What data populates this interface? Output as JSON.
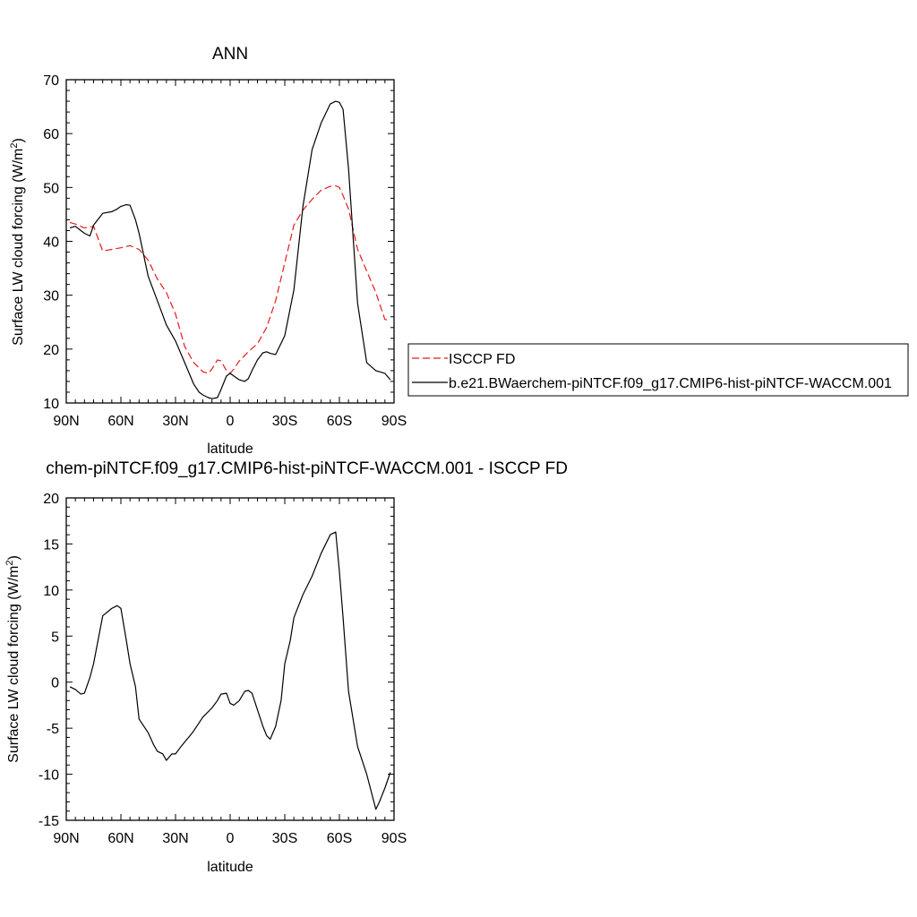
{
  "chart_data": [
    {
      "type": "line",
      "title": "ANN",
      "xlabel": "latitude",
      "ylabel": "Surface LW cloud forcing (W/m",
      "ylabel_superscript": "2",
      "ylabel_suffix": ")",
      "xlim": [
        90,
        -90
      ],
      "ylim": [
        10,
        70
      ],
      "x_ticks": [
        {
          "value": 90,
          "label": "90N"
        },
        {
          "value": 60,
          "label": "60N"
        },
        {
          "value": 30,
          "label": "30N"
        },
        {
          "value": 0,
          "label": "0"
        },
        {
          "value": -30,
          "label": "30S"
        },
        {
          "value": -60,
          "label": "60S"
        },
        {
          "value": -90,
          "label": "90S"
        }
      ],
      "y_ticks": [
        10,
        20,
        30,
        40,
        50,
        60,
        70
      ],
      "grid": false,
      "legend": "right",
      "series": [
        {
          "name": "ISCCP FD",
          "color": "#e41a1c",
          "dash": "dashed",
          "x": [
            88,
            85,
            80,
            75,
            70,
            65,
            60,
            55,
            50,
            45,
            40,
            35,
            30,
            25,
            20,
            15,
            12,
            10,
            7,
            5,
            2,
            0,
            -2,
            -5,
            -10,
            -15,
            -20,
            -25,
            -30,
            -35,
            -40,
            -45,
            -50,
            -55,
            -58,
            -60,
            -62,
            -65,
            -70,
            -75,
            -80,
            -85,
            -88
          ],
          "y": [
            43.5,
            43.2,
            42.5,
            42.8,
            38.2,
            38.5,
            38.8,
            39.2,
            38.5,
            36.5,
            33.0,
            30.5,
            26.5,
            20.5,
            17.5,
            15.8,
            15.5,
            16.3,
            18.0,
            17.8,
            16.0,
            15.5,
            16.3,
            17.8,
            19.5,
            21.0,
            24.0,
            29.0,
            36.0,
            43.0,
            45.8,
            47.8,
            49.5,
            50.2,
            50.3,
            50.0,
            48.5,
            46.0,
            38.5,
            34.5,
            30.5,
            25.5,
            25.3
          ]
        },
        {
          "name": "b.e21.BWaerchem-piNTCF.f09_g17.CMIP6-hist-piNTCF-WACCM.001",
          "color": "#000000",
          "dash": "solid",
          "x": [
            88,
            85,
            82,
            80,
            77,
            75,
            70,
            65,
            62,
            60,
            57,
            55,
            52,
            50,
            45,
            40,
            35,
            30,
            25,
            20,
            17,
            15,
            12,
            10,
            7,
            5,
            2,
            0,
            -2,
            -5,
            -8,
            -10,
            -12,
            -15,
            -18,
            -20,
            -22,
            -25,
            -30,
            -35,
            -40,
            -45,
            -50,
            -55,
            -58,
            -60,
            -62,
            -65,
            -70,
            -75,
            -80,
            -82,
            -85,
            -88
          ],
          "y": [
            42.5,
            42.8,
            42.0,
            41.5,
            41.0,
            43.0,
            45.2,
            45.5,
            46.0,
            46.5,
            46.8,
            46.7,
            44.0,
            41.5,
            33.5,
            29.0,
            24.5,
            21.5,
            17.5,
            13.5,
            12.0,
            11.5,
            11.0,
            10.8,
            11.0,
            12.5,
            15.0,
            15.5,
            15.0,
            14.3,
            14.0,
            14.5,
            16.0,
            18.0,
            19.3,
            19.5,
            19.2,
            19.0,
            22.5,
            31.0,
            46.5,
            57.0,
            62.0,
            65.5,
            66.0,
            65.8,
            64.5,
            53.5,
            28.5,
            17.5,
            16.0,
            15.8,
            15.5,
            14.3
          ]
        }
      ]
    },
    {
      "type": "line",
      "title": "chem-piNTCF.f09_g17.CMIP6-hist-piNTCF-WACCM.001 - ISCCP FD",
      "xlabel": "latitude",
      "ylabel": "Surface LW cloud forcing (W/m",
      "ylabel_superscript": "2",
      "ylabel_suffix": ")",
      "xlim": [
        90,
        -90
      ],
      "ylim": [
        -15,
        20
      ],
      "x_ticks": [
        {
          "value": 90,
          "label": "90N"
        },
        {
          "value": 60,
          "label": "60N"
        },
        {
          "value": 30,
          "label": "30N"
        },
        {
          "value": 0,
          "label": "0"
        },
        {
          "value": -30,
          "label": "30S"
        },
        {
          "value": -60,
          "label": "60S"
        },
        {
          "value": -90,
          "label": "90S"
        }
      ],
      "y_ticks": [
        -15,
        -10,
        -5,
        0,
        5,
        10,
        15,
        20
      ],
      "grid": false,
      "legend": "none",
      "series": [
        {
          "color": "#000000",
          "dash": "solid",
          "x": [
            88,
            85,
            82,
            80,
            77,
            75,
            70,
            65,
            62,
            60,
            57,
            55,
            52,
            50,
            45,
            42,
            40,
            37,
            35,
            32,
            30,
            27,
            25,
            22,
            20,
            15,
            10,
            7,
            5,
            2,
            0,
            -2,
            -5,
            -8,
            -10,
            -12,
            -15,
            -18,
            -20,
            -22,
            -25,
            -28,
            -30,
            -33,
            -35,
            -40,
            -45,
            -50,
            -55,
            -58,
            -60,
            -62,
            -65,
            -70,
            -75,
            -80,
            -82,
            -85,
            -88
          ],
          "y": [
            -0.5,
            -0.8,
            -1.3,
            -1.2,
            0.5,
            2.0,
            7.2,
            8.0,
            8.3,
            8.0,
            4.5,
            2.0,
            -0.5,
            -4.0,
            -5.5,
            -6.8,
            -7.5,
            -7.8,
            -8.5,
            -7.8,
            -7.8,
            -7.0,
            -6.5,
            -5.8,
            -5.3,
            -3.8,
            -2.8,
            -2.0,
            -1.3,
            -1.2,
            -2.3,
            -2.5,
            -2.0,
            -1.0,
            -0.9,
            -1.2,
            -3.0,
            -4.8,
            -5.8,
            -6.2,
            -4.8,
            -2.0,
            2.0,
            4.5,
            7.0,
            9.5,
            11.5,
            14.0,
            16.0,
            16.3,
            12.0,
            7.0,
            -1.0,
            -7.0,
            -10.0,
            -13.8,
            -13.0,
            -11.5,
            -9.8
          ]
        }
      ]
    }
  ]
}
